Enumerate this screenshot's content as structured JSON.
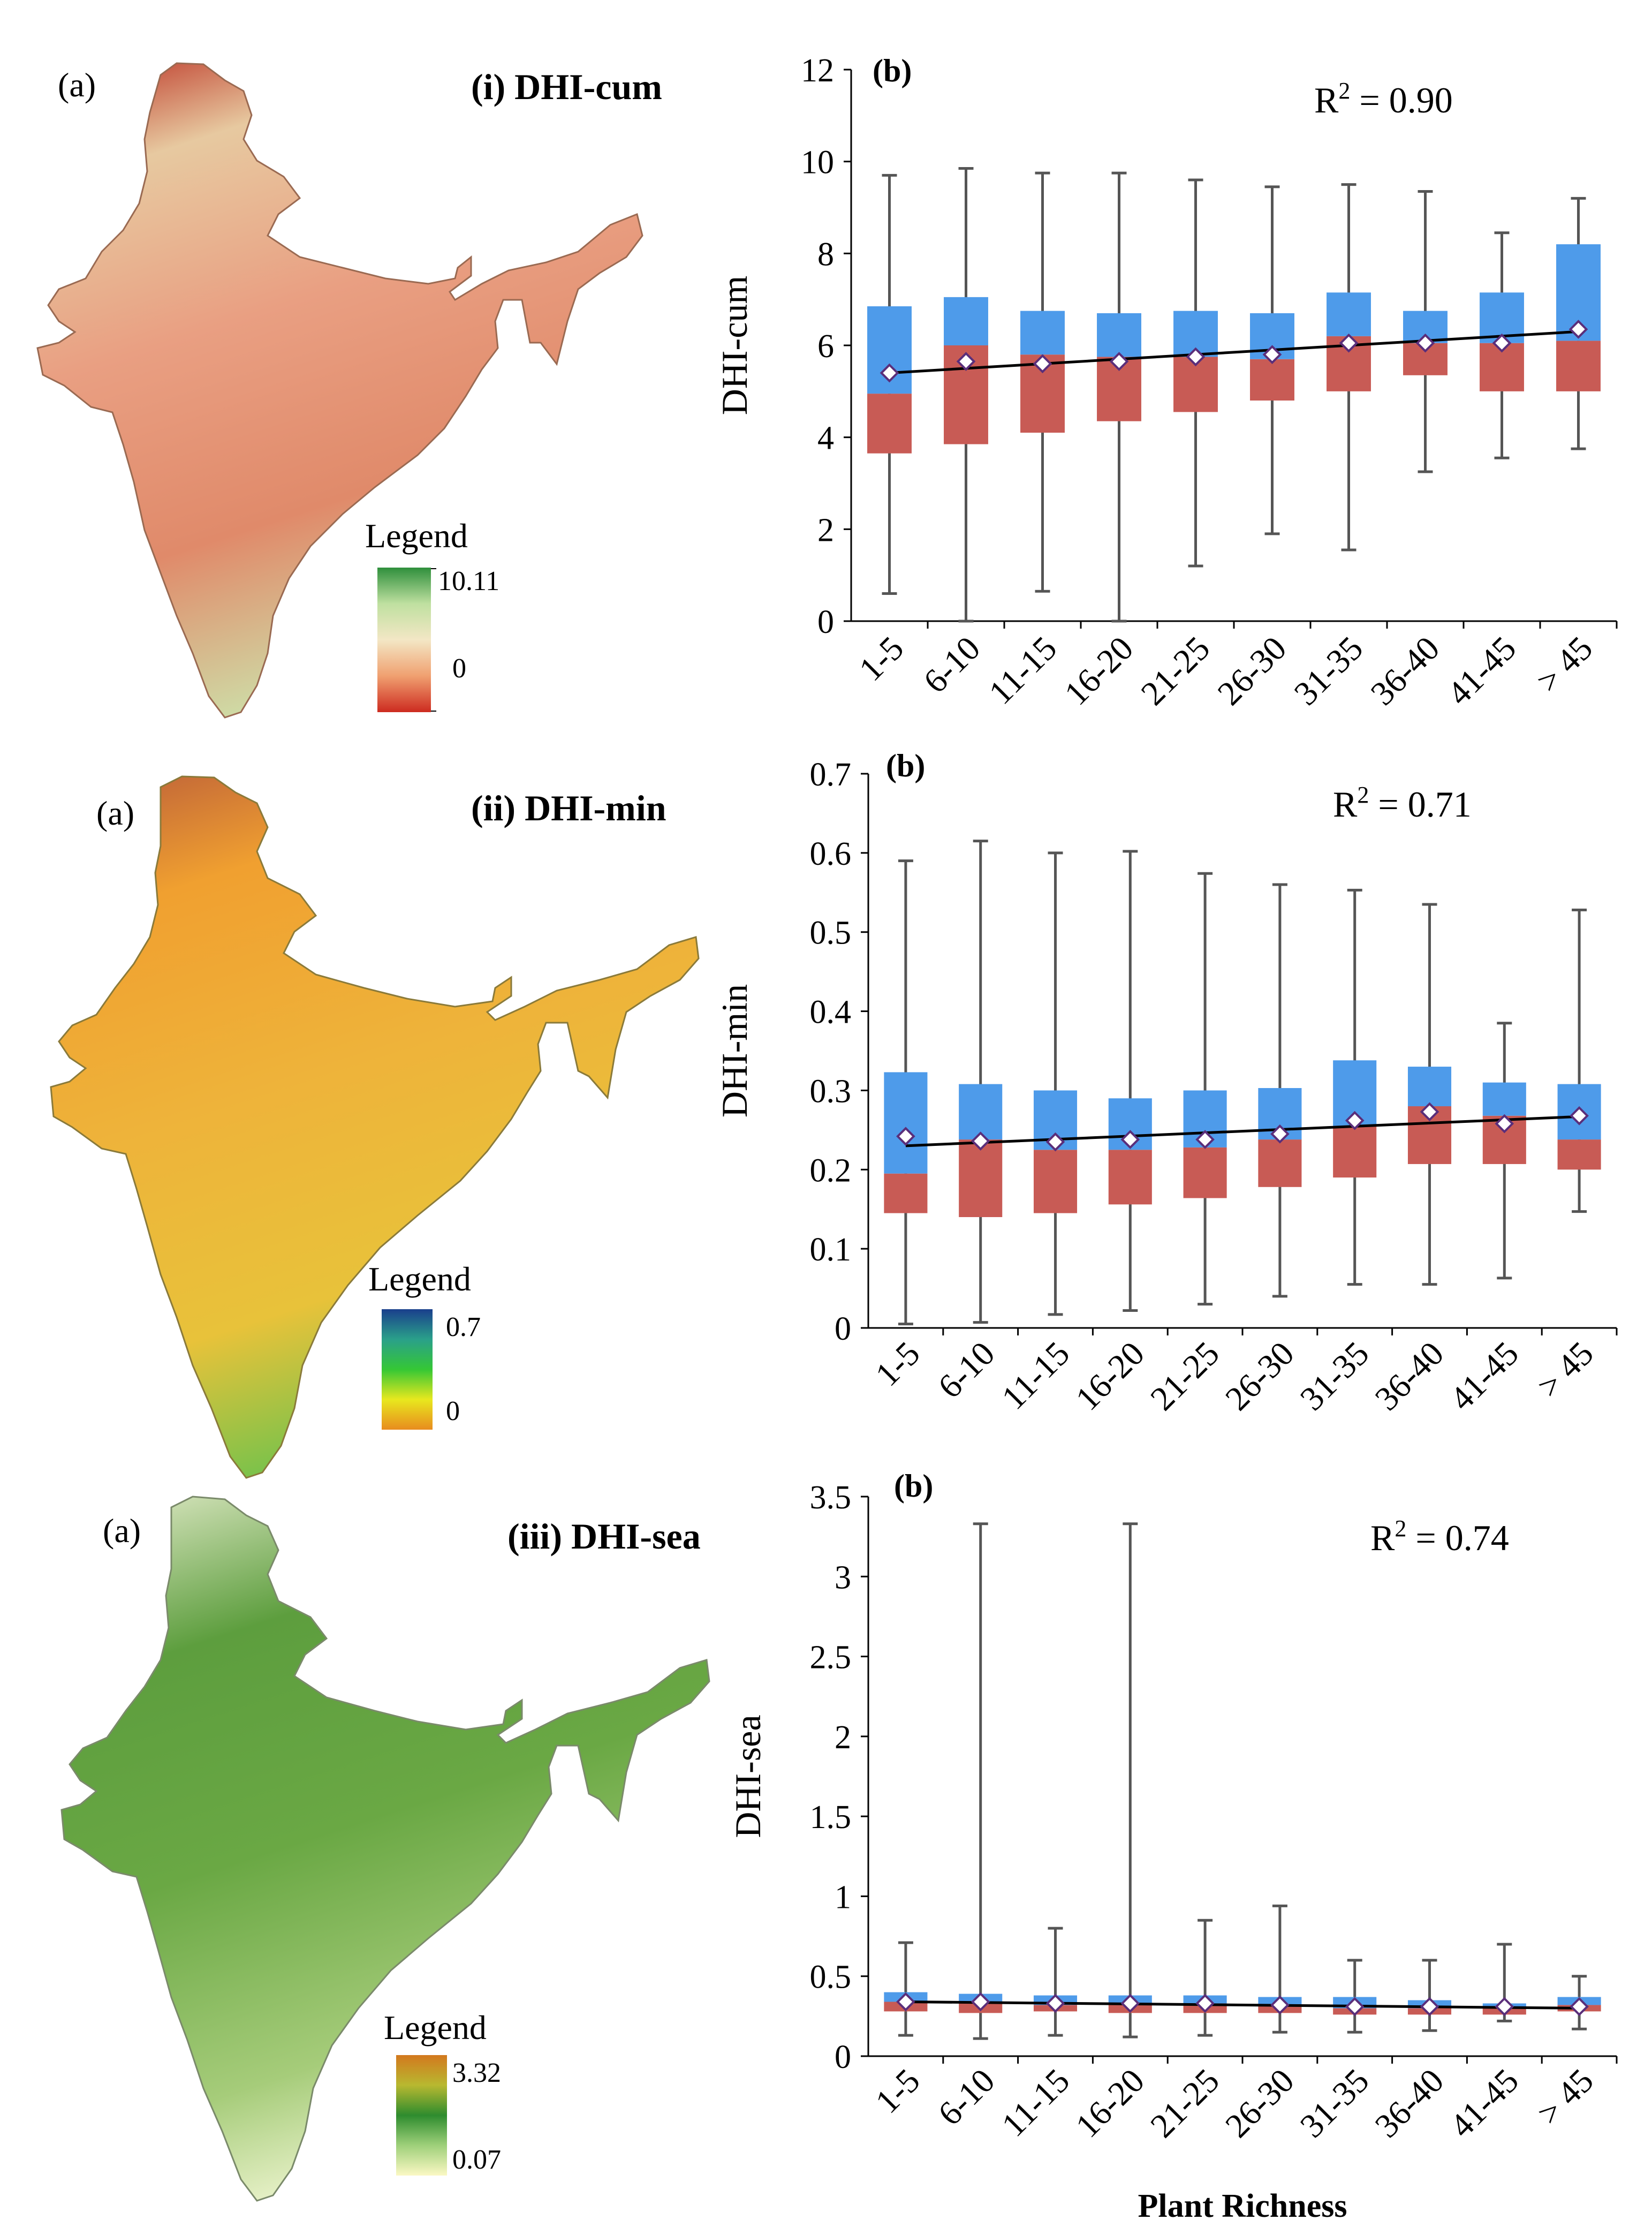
{
  "colors": {
    "box_upper": "#4e9bea",
    "box_lower": "#c85b55",
    "whisker": "#555555",
    "mean_fill": "#ffffff",
    "mean_stroke": "#5a2e7a",
    "trend": "#000000",
    "axis": "#000000"
  },
  "rows": [
    {
      "panel_a_label": "(a)",
      "title": "(i)  DHI-cum",
      "legend_title": "Legend",
      "legend_max": "10.11",
      "legend_min": "0",
      "legend_colors": [
        "#2f8f3c",
        "#bfe0a0",
        "#f3e7c5",
        "#f0a070",
        "#cd2b20"
      ]
    },
    {
      "panel_a_label": "(a)",
      "title": "(ii) DHI-min",
      "legend_title": "Legend",
      "legend_max": "0.7",
      "legend_min": "0",
      "legend_colors": [
        "#1a3f8c",
        "#2aa08a",
        "#35c735",
        "#e8e81e",
        "#e88c1e"
      ]
    },
    {
      "panel_a_label": "(a)",
      "title": "(iii) DHI-sea",
      "legend_title": "Legend",
      "legend_max": "3.32",
      "legend_min": "0.07",
      "legend_colors": [
        "#d3781e",
        "#b8b830",
        "#2e8c2e",
        "#9fd07a",
        "#fbf8c4"
      ]
    }
  ],
  "x_axis_label": "Plant Richness",
  "chart_data": [
    {
      "type": "box",
      "panel_label": "(b)",
      "ylabel": "DHI-cum",
      "xlabel": "",
      "r2_label": "R",
      "r2_sup": "2",
      "r2_value": " = 0.90",
      "categories": [
        "1-5",
        "6-10",
        "11-15",
        "16-20",
        "21-25",
        "26-30",
        "31-35",
        "36-40",
        "41-45",
        "> 45"
      ],
      "ylim": [
        0,
        12
      ],
      "yticks": [
        0,
        2,
        4,
        6,
        8,
        10,
        12
      ],
      "ytick_labels": [
        "0",
        "2",
        "4",
        "6",
        "8",
        "10",
        "12"
      ],
      "whisker_min": [
        0.6,
        0.0,
        0.65,
        0.0,
        1.2,
        1.9,
        1.55,
        3.25,
        3.55,
        3.75
      ],
      "q1": [
        3.65,
        3.85,
        4.1,
        4.35,
        4.55,
        4.8,
        5.0,
        5.35,
        5.0,
        5.0
      ],
      "median": [
        4.95,
        6.0,
        5.8,
        5.75,
        5.75,
        5.7,
        6.2,
        6.05,
        6.05,
        6.1
      ],
      "q3": [
        6.85,
        7.05,
        6.75,
        6.7,
        6.75,
        6.7,
        7.15,
        6.75,
        7.15,
        8.2
      ],
      "whisker_max": [
        9.7,
        9.85,
        9.75,
        9.75,
        9.6,
        9.45,
        9.5,
        9.35,
        8.45,
        9.2
      ],
      "mean": [
        5.4,
        5.65,
        5.6,
        5.65,
        5.75,
        5.8,
        6.05,
        6.05,
        6.05,
        6.35
      ],
      "trend": [
        5.4,
        6.3
      ]
    },
    {
      "type": "box",
      "panel_label": "(b)",
      "ylabel": "DHI-min",
      "xlabel": "",
      "r2_label": "R",
      "r2_sup": "2",
      "r2_value": " = 0.71",
      "categories": [
        "1-5",
        "6-10",
        "11-15",
        "16-20",
        "21-25",
        "26-30",
        "31-35",
        "36-40",
        "41-45",
        "> 45"
      ],
      "ylim": [
        0,
        0.7
      ],
      "yticks": [
        0,
        0.1,
        0.2,
        0.3,
        0.4,
        0.5,
        0.6,
        0.7
      ],
      "ytick_labels": [
        "0",
        "0.1",
        "0.2",
        "0.3",
        "0.4",
        "0.5",
        "0.6",
        "0.7"
      ],
      "whisker_min": [
        0.005,
        0.007,
        0.017,
        0.022,
        0.03,
        0.04,
        0.055,
        0.055,
        0.063,
        0.147
      ],
      "q1": [
        0.145,
        0.14,
        0.145,
        0.156,
        0.164,
        0.178,
        0.19,
        0.207,
        0.207,
        0.2
      ],
      "median": [
        0.195,
        0.238,
        0.225,
        0.225,
        0.228,
        0.238,
        0.255,
        0.28,
        0.268,
        0.238
      ],
      "q3": [
        0.323,
        0.308,
        0.3,
        0.29,
        0.3,
        0.303,
        0.338,
        0.33,
        0.31,
        0.308
      ],
      "whisker_max": [
        0.59,
        0.615,
        0.6,
        0.602,
        0.574,
        0.56,
        0.553,
        0.535,
        0.385,
        0.528
      ],
      "mean": [
        0.242,
        0.236,
        0.235,
        0.238,
        0.238,
        0.245,
        0.262,
        0.273,
        0.258,
        0.268
      ],
      "trend": [
        0.23,
        0.267
      ]
    },
    {
      "type": "box",
      "panel_label": "(b)",
      "ylabel": "DHI-sea",
      "xlabel": "Plant Richness",
      "r2_label": "R",
      "r2_sup": "2",
      "r2_value": " = 0.74",
      "categories": [
        "1-5",
        "6-10",
        "11-15",
        "16-20",
        "21-25",
        "26-30",
        "31-35",
        "36-40",
        "41-45",
        "> 45"
      ],
      "ylim": [
        0,
        3.5
      ],
      "yticks": [
        0,
        0.5,
        1,
        1.5,
        2,
        2.5,
        3,
        3.5
      ],
      "ytick_labels": [
        "0",
        "0.5",
        "1",
        "1.5",
        "2",
        "2.5",
        "3",
        "3.5"
      ],
      "whisker_min": [
        0.13,
        0.11,
        0.13,
        0.12,
        0.13,
        0.15,
        0.15,
        0.16,
        0.22,
        0.17
      ],
      "q1": [
        0.28,
        0.27,
        0.28,
        0.27,
        0.27,
        0.27,
        0.26,
        0.26,
        0.26,
        0.28
      ],
      "median": [
        0.34,
        0.33,
        0.32,
        0.32,
        0.33,
        0.32,
        0.3,
        0.3,
        0.3,
        0.32
      ],
      "q3": [
        0.4,
        0.39,
        0.38,
        0.38,
        0.38,
        0.37,
        0.37,
        0.35,
        0.33,
        0.37
      ],
      "whisker_max": [
        0.71,
        3.33,
        0.8,
        3.33,
        0.85,
        0.94,
        0.6,
        0.6,
        0.7,
        0.5
      ],
      "mean": [
        0.34,
        0.34,
        0.33,
        0.33,
        0.33,
        0.32,
        0.31,
        0.31,
        0.31,
        0.31
      ],
      "trend": [
        0.34,
        0.3
      ]
    }
  ]
}
